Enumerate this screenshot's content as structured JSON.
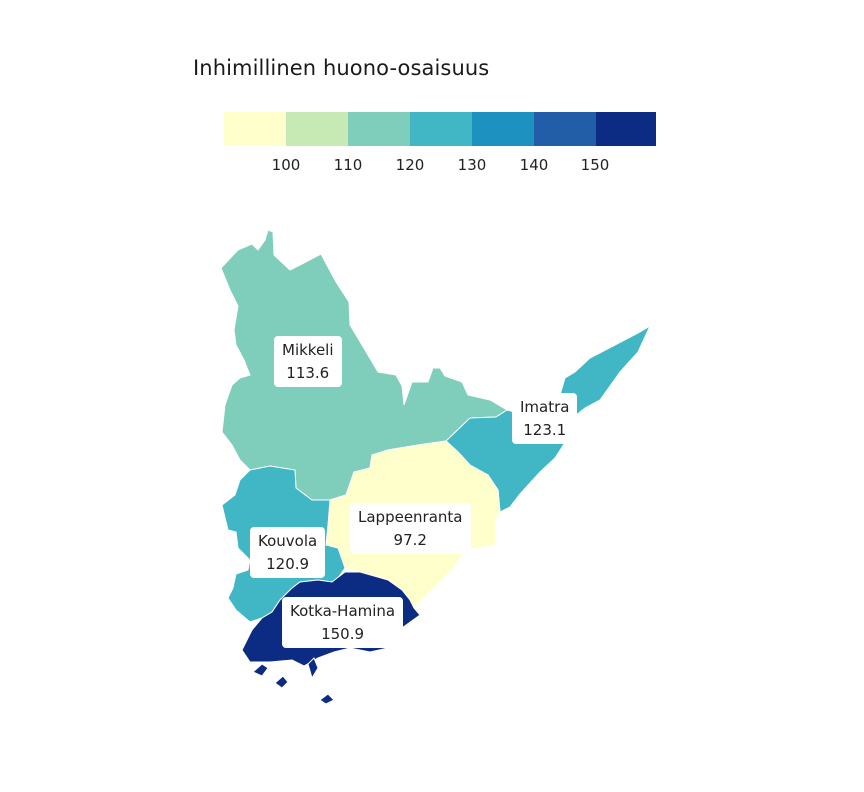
{
  "legend": {
    "title": "Inhimillinen huono-osaisuus",
    "ticks": [
      100,
      110,
      120,
      130,
      140,
      150
    ],
    "colors": [
      "#ffffcc",
      "#c7e9b4",
      "#7fcdbb",
      "#41b6c4",
      "#1d91c0",
      "#225ea8",
      "#0c2c84"
    ]
  },
  "regions": [
    {
      "name": "Mikkeli",
      "value": "113.6",
      "color": "#7fcdbb"
    },
    {
      "name": "Imatra",
      "value": "123.1",
      "color": "#41b6c4"
    },
    {
      "name": "Lappeenranta",
      "value": "97.2",
      "color": "#ffffcc"
    },
    {
      "name": "Kouvola",
      "value": "120.9",
      "color": "#41b6c4"
    },
    {
      "name": "Kotka-Hamina",
      "value": "150.9",
      "color": "#0c2c84"
    }
  ]
}
